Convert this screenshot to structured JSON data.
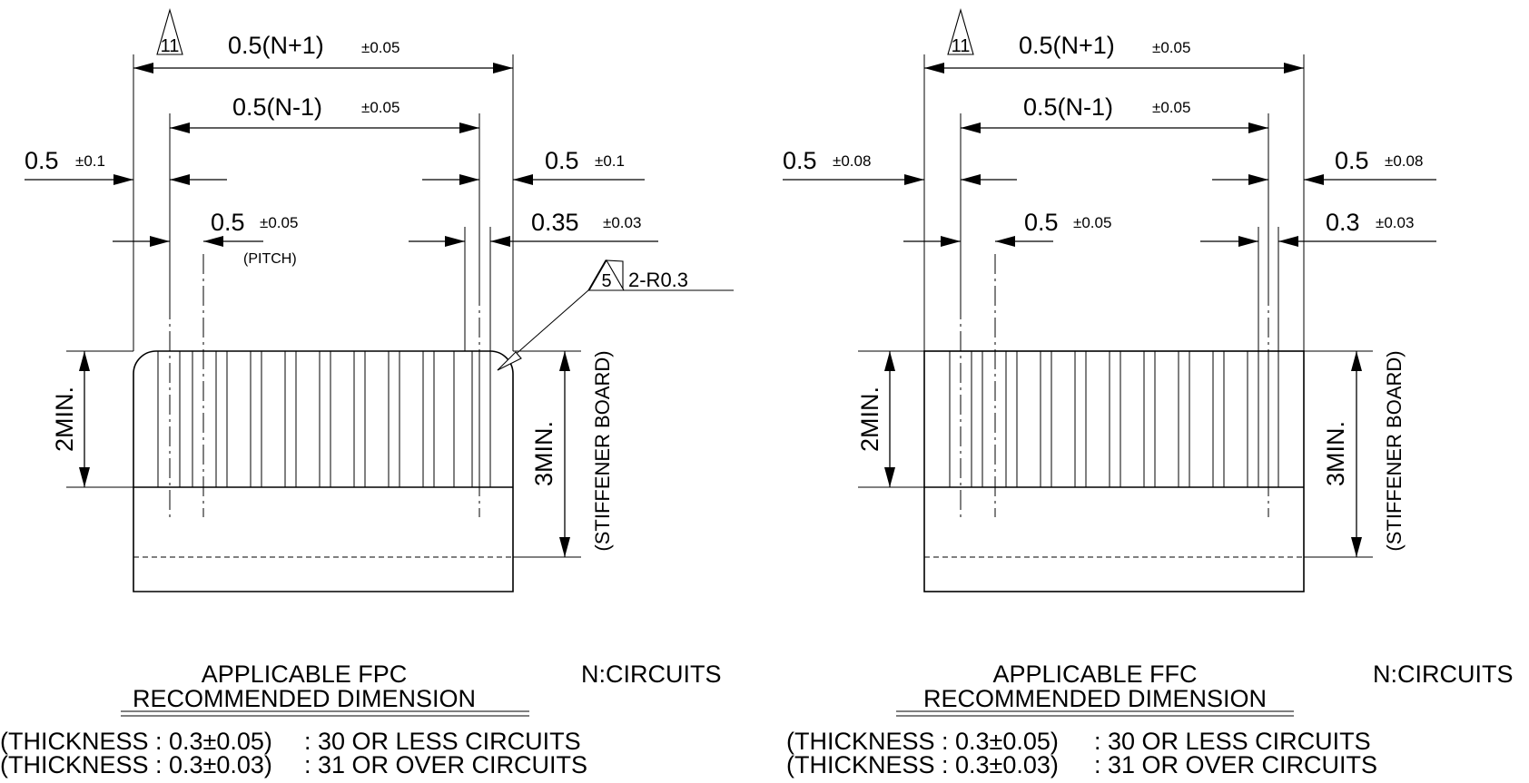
{
  "left": {
    "dims": {
      "overall": "0.5(N+1)",
      "overall_tol": "±0.05",
      "overall_note": "11",
      "inner": "0.5(N-1)",
      "inner_tol": "±0.05",
      "edge_left": "0.5",
      "edge_left_tol": "±0.1",
      "edge_right": "0.5",
      "edge_right_tol": "±0.1",
      "pitch": "0.5",
      "pitch_tol": "±0.05",
      "pitch_label": "(PITCH)",
      "lead": "0.35",
      "lead_tol": "±0.03",
      "radius_note": "5",
      "radius": "2-R0.3",
      "min_contact": "2MIN.",
      "min_board": "3MIN.",
      "board_label": "(STIFFENER BOARD)"
    },
    "title_line1": "APPLICABLE FPC",
    "title_line2": "RECOMMENDED DIMENSION",
    "circuits": "N:CIRCUITS",
    "thickness1": "(THICKNESS : 0.3±0.05)",
    "range1": ": 30 OR LESS CIRCUITS",
    "thickness2": "(THICKNESS : 0.3±0.03)",
    "range2": ": 31 OR OVER CIRCUITS"
  },
  "right": {
    "dims": {
      "overall": "0.5(N+1)",
      "overall_tol": "±0.05",
      "overall_note": "11",
      "inner": "0.5(N-1)",
      "inner_tol": "±0.05",
      "edge_left": "0.5",
      "edge_left_tol": "±0.08",
      "edge_right": "0.5",
      "edge_right_tol": "±0.08",
      "pitch": "0.5",
      "pitch_tol": "±0.05",
      "lead": "0.3",
      "lead_tol": "±0.03",
      "min_contact": "2MIN.",
      "min_board": "3MIN.",
      "board_label": "(STIFFENER BOARD)"
    },
    "title_line1": "APPLICABLE FFC",
    "title_line2": "RECOMMENDED DIMENSION",
    "circuits": "N:CIRCUITS",
    "thickness1": "(THICKNESS : 0.3±0.05)",
    "range1": ": 30 OR LESS CIRCUITS",
    "thickness2": "(THICKNESS : 0.3±0.03)",
    "range2": ": 31 OR OVER CIRCUITS"
  }
}
